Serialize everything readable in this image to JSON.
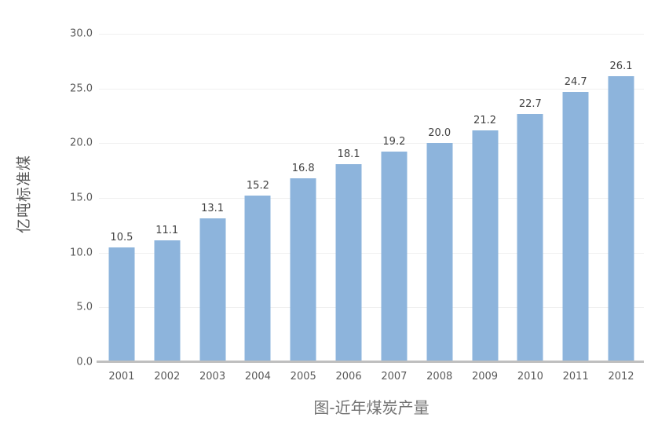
{
  "chart": {
    "title": "图-近年煤炭产量",
    "ylabel": "亿吨标准煤"
  },
  "chart_data": {
    "type": "bar",
    "title": "图-近年煤炭产量",
    "xlabel": "",
    "ylabel": "亿吨标准煤",
    "categories": [
      "2001",
      "2002",
      "2003",
      "2004",
      "2005",
      "2006",
      "2007",
      "2008",
      "2009",
      "2010",
      "2011",
      "2012"
    ],
    "values": [
      10.5,
      11.1,
      13.1,
      15.2,
      16.8,
      18.1,
      19.2,
      20.0,
      21.2,
      22.7,
      24.7,
      26.1
    ],
    "value_labels": [
      "10.5",
      "11.1",
      "13.1",
      "15.2",
      "16.8",
      "18.1",
      "19.2",
      "20.0",
      "21.2",
      "22.7",
      "24.7",
      "26.1"
    ],
    "ylim": [
      0,
      30
    ],
    "ytick_values": [
      0,
      5,
      10,
      15,
      20,
      25,
      30
    ],
    "ytick_labels": [
      "0.0",
      "5.0",
      "10.0",
      "15.0",
      "20.0",
      "25.0",
      "30.0"
    ],
    "grid": true,
    "legend": false,
    "colors": {
      "bar": "#8DB4DC",
      "gridline": "#F0F0F0",
      "axis_line": "#BFBFBF",
      "tick_text": "#595959",
      "value_label_text": "#404040",
      "title_text": "#737373",
      "ylabel_text": "#595959"
    }
  }
}
